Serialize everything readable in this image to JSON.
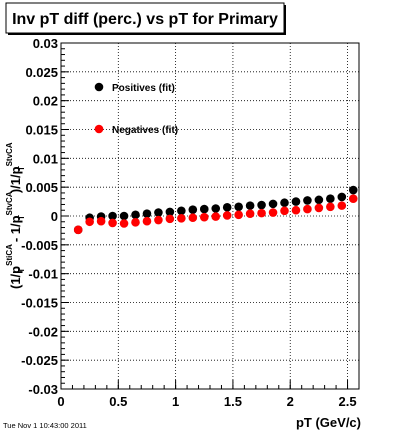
{
  "chart_data": {
    "type": "scatter",
    "title": "Inv pT diff (perc.) vs pT for Primary",
    "xlabel": "pT (GeV/c)",
    "ylabel": "(1/pT^StiCA - 1/pT^StvCA)/1/pT^StvCA",
    "ylabel_parts": {
      "open": "(1/p",
      "sub1": "T",
      "sup1": "StiCA",
      "minus": " - 1/p",
      "sub2": "T",
      "sup2": "StvCA",
      "slash": ")/1/p",
      "sub3": "T",
      "sup3": "StvCA"
    },
    "xlim": [
      0,
      2.6
    ],
    "ylim": [
      -0.03,
      0.03
    ],
    "x_ticks": [
      0,
      0.5,
      1,
      1.5,
      2,
      2.5
    ],
    "x_tick_labels": [
      "0",
      "0.5",
      "1",
      "1.5",
      "2",
      "2.5"
    ],
    "y_ticks": [
      -0.03,
      -0.025,
      -0.02,
      -0.015,
      -0.01,
      -0.005,
      0,
      0.005,
      0.01,
      0.015,
      0.02,
      0.025,
      0.03
    ],
    "y_tick_labels": [
      "-0.03",
      "-0.025",
      "-0.02",
      "-0.015",
      "-0.01",
      "-0.005",
      "0",
      "0.005",
      "0.01",
      "0.015",
      "0.02",
      "0.025",
      "0.03"
    ],
    "grid": true,
    "legend_position": "top-left",
    "series": [
      {
        "name": "Positives (fit)",
        "color": "#000000",
        "x": [
          0.15,
          0.25,
          0.35,
          0.45,
          0.55,
          0.65,
          0.75,
          0.85,
          0.95,
          1.05,
          1.15,
          1.25,
          1.35,
          1.45,
          1.55,
          1.65,
          1.75,
          1.85,
          1.95,
          2.05,
          2.15,
          2.25,
          2.35,
          2.45,
          2.55
        ],
        "y": [
          -0.0024,
          -0.0003,
          -0.0001,
          0.0,
          0.0,
          0.0002,
          0.0004,
          0.0006,
          0.0007,
          0.0009,
          0.0011,
          0.0012,
          0.0013,
          0.0015,
          0.0016,
          0.0018,
          0.0019,
          0.0021,
          0.0023,
          0.0025,
          0.0027,
          0.0028,
          0.003,
          0.0033,
          0.0045
        ]
      },
      {
        "name": "Negatives (fit)",
        "color": "#ff0000",
        "x": [
          0.15,
          0.25,
          0.35,
          0.45,
          0.55,
          0.65,
          0.75,
          0.85,
          0.95,
          1.05,
          1.15,
          1.25,
          1.35,
          1.45,
          1.55,
          1.65,
          1.75,
          1.85,
          1.95,
          2.05,
          2.15,
          2.25,
          2.35,
          2.45,
          2.55
        ],
        "y": [
          -0.0024,
          -0.001,
          -0.0009,
          -0.0012,
          -0.0013,
          -0.0011,
          -0.0009,
          -0.0007,
          -0.0005,
          -0.0004,
          -0.0003,
          -0.0002,
          -0.0001,
          0.0001,
          0.0002,
          0.0004,
          0.0005,
          0.0006,
          0.0009,
          0.001,
          0.0012,
          0.0014,
          0.0016,
          0.0018,
          0.003
        ]
      }
    ]
  },
  "timestamp": "Tue Nov  1 10:43:00 2011"
}
